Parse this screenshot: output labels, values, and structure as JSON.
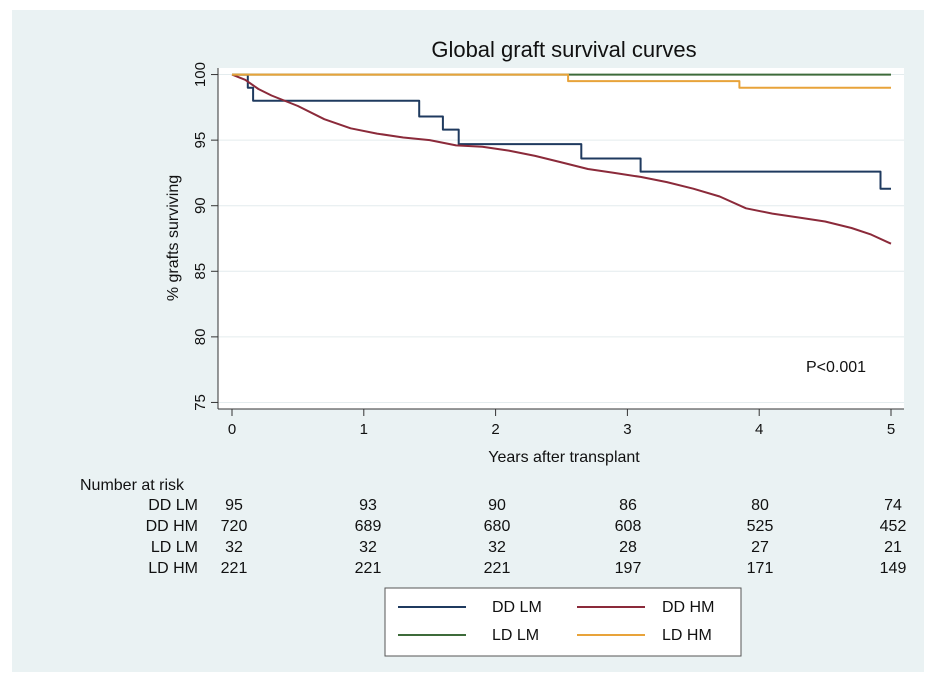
{
  "chart_data": {
    "type": "line",
    "title": "Global graft survival curves",
    "xlabel": "Years after transplant",
    "ylabel": "% grafts surviving",
    "xlim": [
      0,
      5
    ],
    "ylim": [
      74.5,
      100.5
    ],
    "x_ticks": [
      "0",
      "1",
      "2",
      "3",
      "4",
      "5"
    ],
    "y_ticks": [
      "75",
      "80",
      "85",
      "90",
      "95",
      "100"
    ],
    "grid": true,
    "annotation": "P<0.001",
    "series": [
      {
        "name": "DD LM",
        "color": "#1f3a5f",
        "step": true,
        "points": [
          [
            0,
            100
          ],
          [
            0.12,
            100
          ],
          [
            0.12,
            99
          ],
          [
            0.16,
            99
          ],
          [
            0.16,
            98
          ],
          [
            1.42,
            98
          ],
          [
            1.42,
            96.8
          ],
          [
            1.6,
            96.8
          ],
          [
            1.6,
            95.8
          ],
          [
            1.72,
            95.8
          ],
          [
            1.72,
            94.7
          ],
          [
            2.65,
            94.7
          ],
          [
            2.65,
            93.6
          ],
          [
            3.1,
            93.6
          ],
          [
            3.1,
            92.6
          ],
          [
            4.92,
            92.6
          ],
          [
            4.92,
            91.3
          ],
          [
            5,
            91.3
          ]
        ]
      },
      {
        "name": "DD HM",
        "color": "#8b2a3a",
        "step": false,
        "points": [
          [
            0,
            100
          ],
          [
            0.1,
            99.6
          ],
          [
            0.2,
            98.9
          ],
          [
            0.3,
            98.4
          ],
          [
            0.5,
            97.6
          ],
          [
            0.7,
            96.6
          ],
          [
            0.9,
            95.9
          ],
          [
            1.1,
            95.5
          ],
          [
            1.3,
            95.2
          ],
          [
            1.5,
            95.0
          ],
          [
            1.7,
            94.6
          ],
          [
            1.9,
            94.5
          ],
          [
            2.1,
            94.2
          ],
          [
            2.3,
            93.8
          ],
          [
            2.5,
            93.3
          ],
          [
            2.7,
            92.8
          ],
          [
            2.9,
            92.5
          ],
          [
            3.1,
            92.2
          ],
          [
            3.3,
            91.8
          ],
          [
            3.5,
            91.3
          ],
          [
            3.7,
            90.7
          ],
          [
            3.9,
            89.8
          ],
          [
            4.1,
            89.4
          ],
          [
            4.3,
            89.1
          ],
          [
            4.5,
            88.8
          ],
          [
            4.7,
            88.3
          ],
          [
            4.85,
            87.8
          ],
          [
            5,
            87.1
          ]
        ]
      },
      {
        "name": "LD LM",
        "color": "#3d6b3a",
        "step": true,
        "points": [
          [
            0,
            100
          ],
          [
            5,
            100
          ]
        ]
      },
      {
        "name": "LD HM",
        "color": "#e8a33a",
        "step": true,
        "points": [
          [
            0,
            100
          ],
          [
            2.55,
            100
          ],
          [
            2.55,
            99.5
          ],
          [
            3.85,
            99.5
          ],
          [
            3.85,
            99
          ],
          [
            5,
            99
          ]
        ]
      }
    ],
    "risk_table": {
      "title": "Number at risk",
      "rows": [
        {
          "label": "DD LM",
          "values": [
            "95",
            "93",
            "90",
            "86",
            "80",
            "74"
          ]
        },
        {
          "label": "DD HM",
          "values": [
            "720",
            "689",
            "680",
            "608",
            "525",
            "452"
          ]
        },
        {
          "label": "LD LM",
          "values": [
            "32",
            "32",
            "32",
            "28",
            "27",
            "21"
          ]
        },
        {
          "label": "LD HM",
          "values": [
            "221",
            "221",
            "221",
            "197",
            "171",
            "149"
          ]
        }
      ]
    },
    "legend_placement": "bottom-center"
  }
}
